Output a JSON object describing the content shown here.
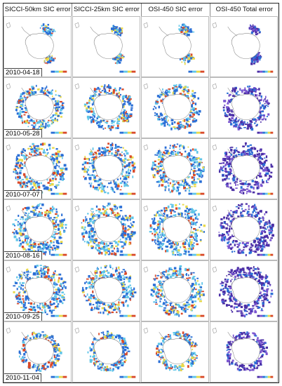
{
  "columns": [
    {
      "title": "SICCI-50km SIC error",
      "style": "mixed"
    },
    {
      "title": "SICCI-25km SIC error",
      "style": "mixed"
    },
    {
      "title": "OSI-450 SIC error",
      "style": "mixed"
    },
    {
      "title": "OSI-450 Total error",
      "style": "purple"
    }
  ],
  "rows": [
    {
      "date": "2010-04-18",
      "ice_extent": 0.25
    },
    {
      "date": "2010-05-28",
      "ice_extent": 0.7
    },
    {
      "date": "2010-07-07",
      "ice_extent": 0.9
    },
    {
      "date": "2010-08-16",
      "ice_extent": 0.95
    },
    {
      "date": "2010-09-25",
      "ice_extent": 0.9
    },
    {
      "date": "2010-11-04",
      "ice_extent": 0.5
    }
  ],
  "colors": {
    "land_outline": "#8a8a8a",
    "ice_blue": "#2b6fd6",
    "ice_cyan": "#5fc5e8",
    "ice_yellow": "#e8d94a",
    "ice_red": "#d94a2a",
    "ice_purple": "#4b2fa6",
    "ice_violet": "#7a55d0"
  }
}
